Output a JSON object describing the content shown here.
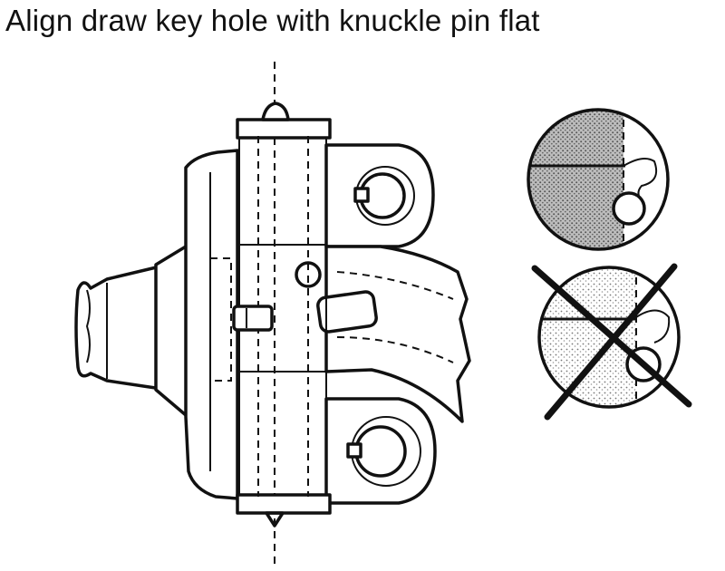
{
  "title": "Align draw key hole with knuckle pin flat",
  "illustration": {
    "subject": "steering knuckle with knuckle pin and draw key",
    "insets": [
      {
        "name": "correct-alignment",
        "crossed_out": false
      },
      {
        "name": "incorrect-alignment",
        "crossed_out": true
      }
    ]
  },
  "colors": {
    "ink": "#111111",
    "paper": "#ffffff",
    "stipple": "#8a8a8a"
  }
}
